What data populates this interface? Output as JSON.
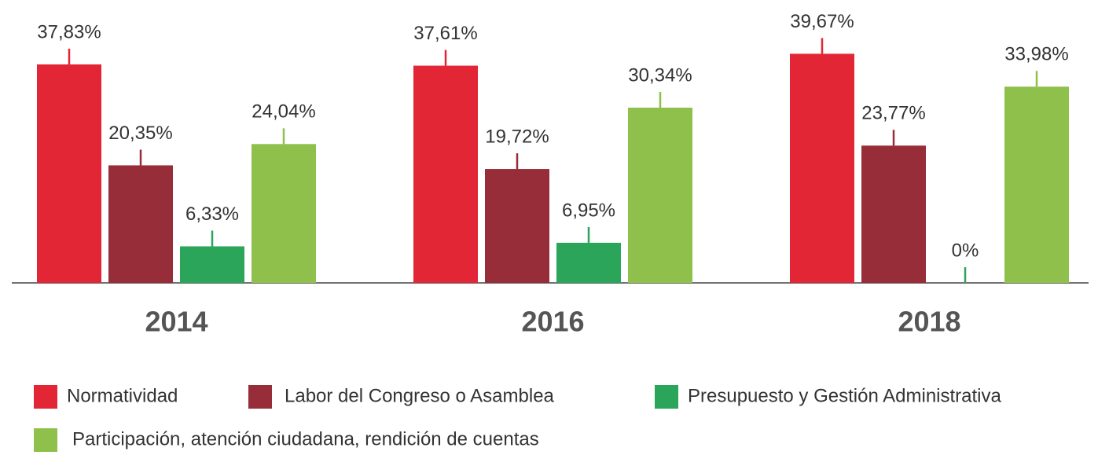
{
  "chart_data": {
    "type": "bar",
    "categories": [
      "2014",
      "2016",
      "2018"
    ],
    "series": [
      {
        "name": "Normatividad",
        "color": "#e32636",
        "values": [
          37.83,
          37.61,
          39.67
        ],
        "value_labels": [
          "37,83%",
          "37,61%",
          "39,67%"
        ]
      },
      {
        "name": "Labor del Congreso o Asamblea",
        "color": "#962d38",
        "values": [
          20.35,
          19.72,
          23.77
        ],
        "value_labels": [
          "20,35%",
          "19,72%",
          "23,77%"
        ]
      },
      {
        "name": "Presupuesto y Gestión Administrativa",
        "color": "#2ba55a",
        "values": [
          6.33,
          6.95,
          0
        ],
        "value_labels": [
          "6,33%",
          "6,95%",
          "0%"
        ]
      },
      {
        "name": "Participación, atención ciudadana, rendición de cuentas",
        "color": "#8fc04c",
        "values": [
          24.04,
          30.34,
          33.98
        ],
        "value_labels": [
          "24,04%",
          "30,34%",
          "33,98%"
        ]
      }
    ]
  }
}
